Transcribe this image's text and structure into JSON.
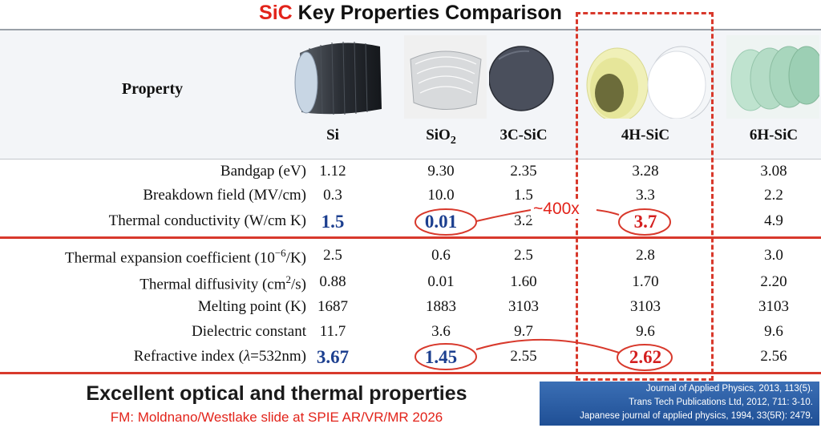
{
  "title": {
    "accent": "SiC",
    "rest": " Key Properties Comparison"
  },
  "table": {
    "property_header": "Property",
    "columns": [
      {
        "id": "si",
        "name": "Si"
      },
      {
        "id": "sio2",
        "name": "SiO",
        "sub": "2"
      },
      {
        "id": "3c",
        "name": "3C-SiC"
      },
      {
        "id": "4h",
        "name": "4H-SiC"
      },
      {
        "id": "6h",
        "name": "6H-SiC"
      }
    ],
    "rows": [
      {
        "label": "Bandgap (eV)",
        "values": [
          "1.12",
          "9.30",
          "2.35",
          "3.28",
          "3.08"
        ]
      },
      {
        "label": "Breakdown field (MV/cm)",
        "values": [
          "0.3",
          "10.0",
          "1.5",
          "3.3",
          "2.2"
        ]
      },
      {
        "label": "Thermal conductivity (W/cm K)",
        "values": [
          "1.5",
          "0.01",
          "3.2",
          "3.7",
          "4.9"
        ]
      },
      {
        "label_pre": "Thermal expansion coefficient (10",
        "label_sup": "−6",
        "label_post": "/K)",
        "values": [
          "2.5",
          "0.6",
          "2.5",
          "2.8",
          "3.0"
        ]
      },
      {
        "label_pre": "Thermal diffusivity (cm",
        "label_sup": "2",
        "label_post": "/s)",
        "values": [
          "0.88",
          "0.01",
          "1.60",
          "1.70",
          "2.20"
        ]
      },
      {
        "label": "Melting point (K)",
        "values": [
          "1687",
          "1883",
          "3103",
          "3103",
          "3103"
        ]
      },
      {
        "label": "Dielectric constant",
        "values": [
          "11.7",
          "3.6",
          "9.7",
          "9.6",
          "9.6"
        ]
      },
      {
        "label_pre": "Refractive index (",
        "label_ital": "λ",
        "label_post": "=532nm)",
        "values": [
          "3.67",
          "1.45",
          "2.55",
          "2.62",
          "2.56"
        ]
      }
    ]
  },
  "annotation": {
    "ratio": "~400x"
  },
  "colors": {
    "accent_red": "#e2231a",
    "highlight_blue": "#1c3f8f",
    "divider_red": "#d8392c",
    "refs_blue": "#1f4f95"
  },
  "footer": {
    "heading": "Excellent optical and thermal properties",
    "credit": "FM: Moldnano/Westlake slide at SPIE AR/VR/MR 2026",
    "references": [
      "Journal of Applied Physics, 2013, 113(5).",
      "Trans Tech Publications Ltd, 2012, 711: 3-10.",
      "Japanese journal of applied physics, 1994, 33(5R): 2479."
    ]
  }
}
